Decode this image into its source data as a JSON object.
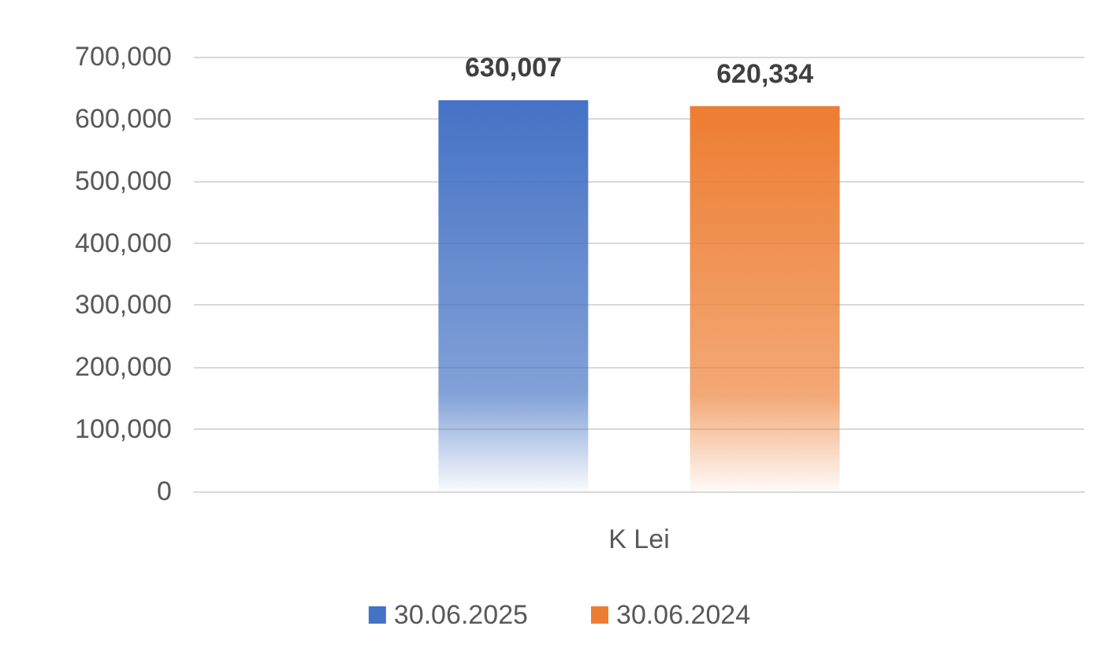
{
  "chart_data": {
    "type": "bar",
    "categories": [
      "K Lei"
    ],
    "series": [
      {
        "name": "30.06.2025",
        "color": "#4472c4",
        "values": [
          630007
        ],
        "value_labels": [
          "630,007"
        ]
      },
      {
        "name": "30.06.2024",
        "color": "#ed7d31",
        "values": [
          620334
        ],
        "value_labels": [
          "620,334"
        ]
      }
    ],
    "ylim": [
      0,
      700000
    ],
    "yticks": [
      {
        "value": 0,
        "label": "0"
      },
      {
        "value": 100000,
        "label": "100,000"
      },
      {
        "value": 200000,
        "label": "200,000"
      },
      {
        "value": 300000,
        "label": "300,000"
      },
      {
        "value": 400000,
        "label": "400,000"
      },
      {
        "value": 500000,
        "label": "500,000"
      },
      {
        "value": 600000,
        "label": "600,000"
      },
      {
        "value": 700000,
        "label": "700,000"
      }
    ],
    "grid": "y",
    "legend": "bottom"
  }
}
